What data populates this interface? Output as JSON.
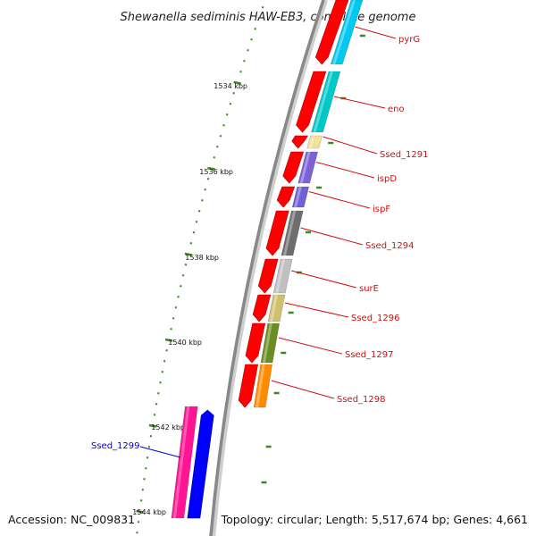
{
  "map": {
    "title": "Shewanella sediminis HAW-EB3, complete genome",
    "accession": "Accession: NC_009831",
    "topology": "Topology: circular; Length: 5,517,674 bp; Genes: 4,661"
  },
  "colors": {
    "backbone": "#888888",
    "tick": "#3a8a1e",
    "forward_label": "#d01010",
    "reverse_label": "#0000cc",
    "cds_red": "#ff0000"
  },
  "kbp_labels": [
    "1534 kbp",
    "1536 kbp",
    "1538 kbp",
    "1540 kbp",
    "1542 kbp",
    "1544 kbp"
  ],
  "genes": [
    {
      "name": "pyrG",
      "color": "#00c8f0",
      "strand": "-"
    },
    {
      "name": "eno",
      "color": "#00c8c8",
      "strand": "-"
    },
    {
      "name": "Ssed_1291",
      "color": "#f4e29a",
      "strand": "-"
    },
    {
      "name": "ispD",
      "color": "#7b62d6",
      "strand": "-"
    },
    {
      "name": "ispF",
      "color": "#7060d8",
      "strand": "-"
    },
    {
      "name": "Ssed_1294",
      "color": "#6e6e6e",
      "strand": "-"
    },
    {
      "name": "surE",
      "color": "#c0c0c0",
      "strand": "-"
    },
    {
      "name": "Ssed_1296",
      "color": "#cfc070",
      "strand": "-"
    },
    {
      "name": "Ssed_1297",
      "color": "#6b8e23",
      "strand": "-"
    },
    {
      "name": "Ssed_1298",
      "color": "#ff8c00",
      "strand": "-"
    },
    {
      "name": "Ssed_1299",
      "color": "#ff1493",
      "strand": "+"
    }
  ]
}
